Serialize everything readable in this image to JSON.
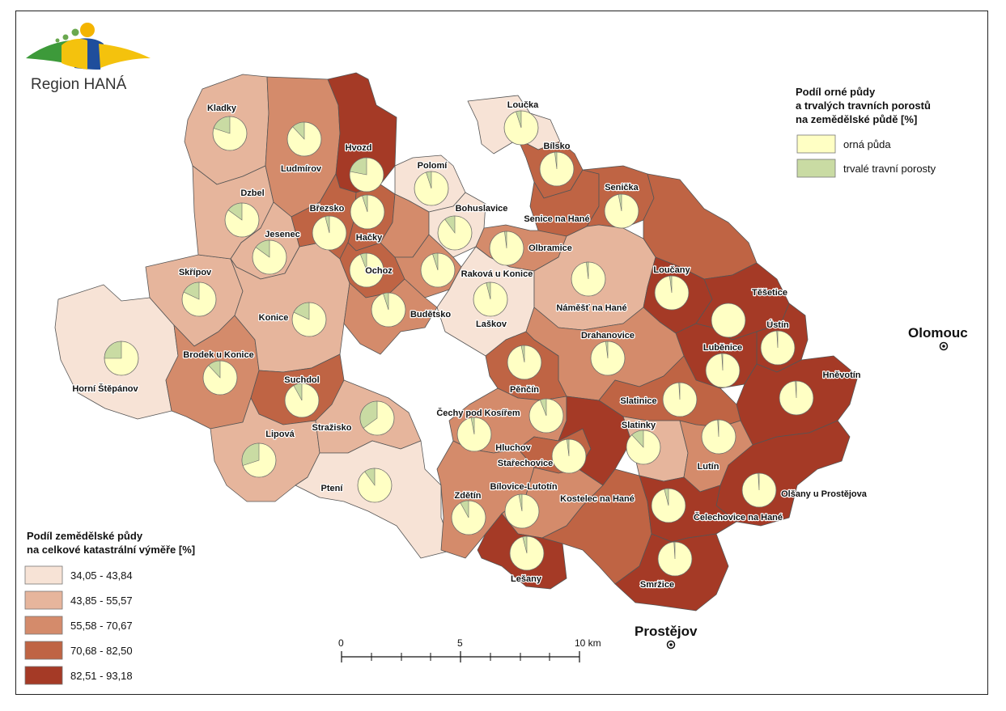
{
  "logo": {
    "text": "Region HANÁ"
  },
  "legend_choropleth": {
    "title_line1": "Podíl zemědělské půdy",
    "title_line2": "na celkové katastrální výměře [%]",
    "classes": [
      {
        "label": "34,05 - 43,84",
        "color": "#f7e3d6"
      },
      {
        "label": "43,85 - 55,57",
        "color": "#e6b59c"
      },
      {
        "label": "55,58 - 70,67",
        "color": "#d48b6b"
      },
      {
        "label": "70,68 - 82,50",
        "color": "#bf6444"
      },
      {
        "label": "82,51 - 93,18",
        "color": "#a53a26"
      }
    ]
  },
  "legend_pie": {
    "title_line1": "Podíl orné půdy",
    "title_line2": "a trvalých travních porostů",
    "title_line3": "na zemědělské půdě [%]",
    "items": [
      {
        "label": "orná půda",
        "color": "#ffffc4"
      },
      {
        "label": "trvalé travní porosty",
        "color": "#c9dba3"
      }
    ]
  },
  "cities": [
    {
      "name": "Olomouc"
    },
    {
      "name": "Prostějov"
    }
  ],
  "scale_bar": {
    "labels": [
      "0",
      "5",
      "10 km"
    ]
  },
  "municipalities": [
    {
      "name": "Kladky",
      "class": 1,
      "grass_pct": 20
    },
    {
      "name": "Ludmírov",
      "class": 2,
      "grass_pct": 12
    },
    {
      "name": "Hvozd",
      "class": 4,
      "grass_pct": 22
    },
    {
      "name": "Loučka",
      "class": 0,
      "grass_pct": 5
    },
    {
      "name": "Bílsko",
      "class": 3,
      "grass_pct": 2
    },
    {
      "name": "Polomí",
      "class": 0,
      "grass_pct": 5
    },
    {
      "name": "Dzbel",
      "class": 1,
      "grass_pct": 15
    },
    {
      "name": "Březsko",
      "class": 3,
      "grass_pct": 4
    },
    {
      "name": "Bohuslavice",
      "class": 0,
      "grass_pct": 10
    },
    {
      "name": "Senička",
      "class": 3,
      "grass_pct": 3
    },
    {
      "name": "Senice na Hané",
      "class": 3,
      "grass_pct": 2
    },
    {
      "name": "Jesenec",
      "class": 1,
      "grass_pct": 15
    },
    {
      "name": "Hačky",
      "class": 3,
      "grass_pct": 5
    },
    {
      "name": "Olbramice",
      "class": 2,
      "grass_pct": 2
    },
    {
      "name": "Skřípov",
      "class": 1,
      "grass_pct": 18
    },
    {
      "name": "Ochoz",
      "class": 3,
      "grass_pct": 6
    },
    {
      "name": "Raková u Konice",
      "class": 2,
      "grass_pct": 5
    },
    {
      "name": "Loučany",
      "class": 4,
      "grass_pct": 2
    },
    {
      "name": "Těšetice",
      "class": 4,
      "grass_pct": 0
    },
    {
      "name": "Konice",
      "class": 1,
      "grass_pct": 18
    },
    {
      "name": "Budětsko",
      "class": 2,
      "grass_pct": 5
    },
    {
      "name": "Laškov",
      "class": 0,
      "grass_pct": 4
    },
    {
      "name": "Náměšť na Hané",
      "class": 1,
      "grass_pct": 2
    },
    {
      "name": "Luběnice",
      "class": 4,
      "grass_pct": 1
    },
    {
      "name": "Ústín",
      "class": 4,
      "grass_pct": 1
    },
    {
      "name": "Horní Štěpánov",
      "class": 0,
      "grass_pct": 25
    },
    {
      "name": "Brodek u Konice",
      "class": 2,
      "grass_pct": 12
    },
    {
      "name": "Drahanovice",
      "class": 2,
      "grass_pct": 2
    },
    {
      "name": "Pěnčín",
      "class": 3,
      "grass_pct": 3
    },
    {
      "name": "Suchdol",
      "class": 3,
      "grass_pct": 8
    },
    {
      "name": "Hněvotín",
      "class": 4,
      "grass_pct": 1
    },
    {
      "name": "Slatinice",
      "class": 3,
      "grass_pct": 1
    },
    {
      "name": "Čechy pod Kosířem",
      "class": 2,
      "grass_pct": 6
    },
    {
      "name": "Stražisko",
      "class": 1,
      "grass_pct": 35
    },
    {
      "name": "Slatinky",
      "class": 1,
      "grass_pct": 12
    },
    {
      "name": "Lipová",
      "class": 1,
      "grass_pct": 30
    },
    {
      "name": "Hluchov",
      "class": 3,
      "grass_pct": 3
    },
    {
      "name": "Stařechovice",
      "class": 4,
      "grass_pct": 2
    },
    {
      "name": "Lutín",
      "class": 2,
      "grass_pct": 1
    },
    {
      "name": "Ptení",
      "class": 0,
      "grass_pct": 10
    },
    {
      "name": "Zdětín",
      "class": 2,
      "grass_pct": 8
    },
    {
      "name": "Bílovice-Lutotín",
      "class": 2,
      "grass_pct": 3
    },
    {
      "name": "Kostelec na Hané",
      "class": 3,
      "grass_pct": 1
    },
    {
      "name": "Olšany u Prostějova",
      "class": 4,
      "grass_pct": 1
    },
    {
      "name": "Čelechovice na Hané",
      "class": 4,
      "grass_pct": 4
    },
    {
      "name": "Lešany",
      "class": 4,
      "grass_pct": 4
    },
    {
      "name": "Smržice",
      "class": 4,
      "grass_pct": 1
    }
  ]
}
